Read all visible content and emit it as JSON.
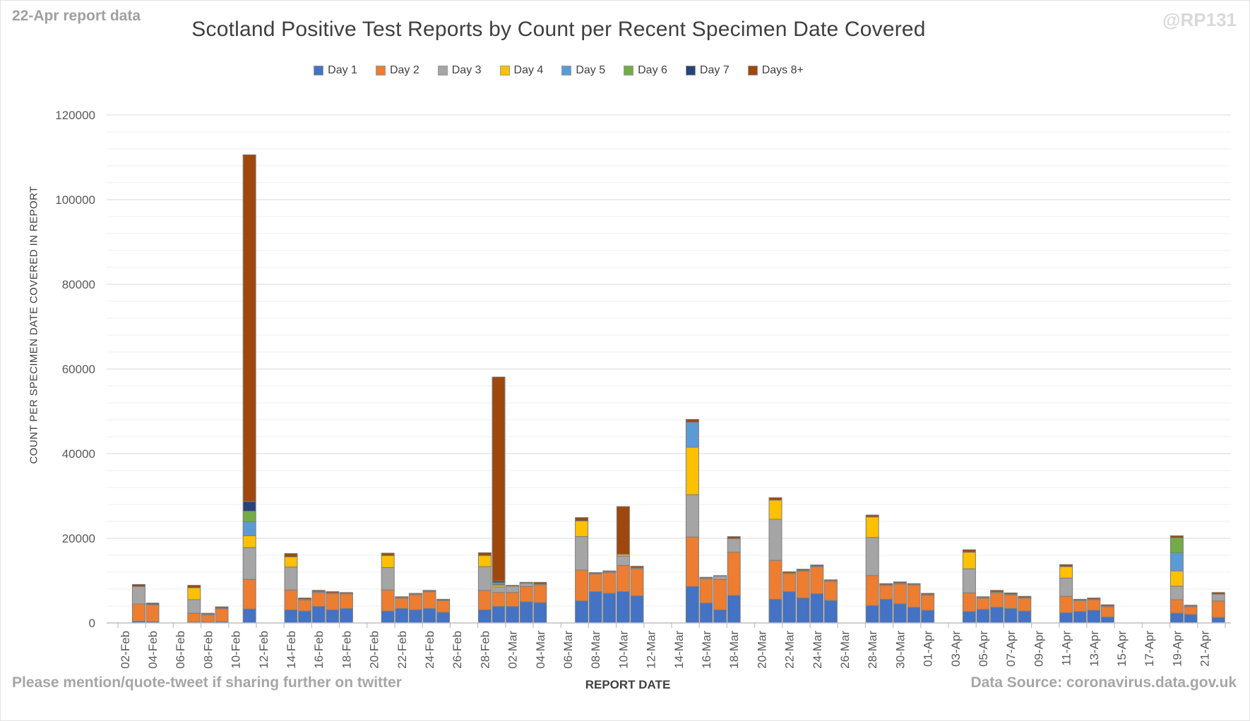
{
  "annotations": {
    "report_note": "22-Apr report data",
    "watermark": "@RP131",
    "footer_left": "Please mention/quote-tweet if sharing further on twitter",
    "footer_right": "Data Source: coronavirus.data.gov.uk"
  },
  "chart_data": {
    "type": "bar",
    "stacked": true,
    "title": "Scotland Positive Test Reports by Count per Recent Specimen Date Covered",
    "xlabel": "REPORT DATE",
    "ylabel": "COUNT PER SPECIMEN DATE COVERED IN REPORT",
    "ylim": [
      0,
      120000
    ],
    "y_tick_values": [
      0,
      20000,
      40000,
      60000,
      80000,
      100000,
      120000
    ],
    "y_minor_step": 4000,
    "grid": true,
    "legend_position": "top",
    "x_slots": 80,
    "x_tick_labels": [
      "02-Feb",
      "04-Feb",
      "06-Feb",
      "08-Feb",
      "10-Feb",
      "12-Feb",
      "14-Feb",
      "16-Feb",
      "18-Feb",
      "20-Feb",
      "22-Feb",
      "24-Feb",
      "26-Feb",
      "28-Feb",
      "02-Mar",
      "04-Mar",
      "06-Mar",
      "08-Mar",
      "10-Mar",
      "12-Mar",
      "14-Mar",
      "16-Mar",
      "18-Mar",
      "20-Mar",
      "22-Mar",
      "24-Mar",
      "26-Mar",
      "28-Mar",
      "30-Mar",
      "01-Apr",
      "03-Apr",
      "05-Apr",
      "07-Apr",
      "09-Apr",
      "11-Apr",
      "13-Apr",
      "15-Apr",
      "17-Apr",
      "19-Apr",
      "21-Apr"
    ],
    "series": [
      {
        "name": "Day 1",
        "color": "#4472C4"
      },
      {
        "name": "Day 2",
        "color": "#ED7D31"
      },
      {
        "name": "Day 3",
        "color": "#A5A5A5"
      },
      {
        "name": "Day 4",
        "color": "#FFC000"
      },
      {
        "name": "Day 5",
        "color": "#5B9BD5"
      },
      {
        "name": "Day 6",
        "color": "#70AD47"
      },
      {
        "name": "Day 7",
        "color": "#264478"
      },
      {
        "name": "Days 8+",
        "color": "#9E480E"
      }
    ],
    "bars": [
      {
        "date": "03-Feb",
        "slot": 1,
        "values": [
          400,
          4100,
          4100,
          0,
          0,
          0,
          0,
          500
        ]
      },
      {
        "date": "04-Feb",
        "slot": 2,
        "values": [
          300,
          4000,
          100,
          0,
          0,
          0,
          0,
          300
        ]
      },
      {
        "date": "07-Feb",
        "slot": 5,
        "values": [
          200,
          2100,
          3200,
          2800,
          0,
          0,
          0,
          600
        ]
      },
      {
        "date": "08-Feb",
        "slot": 6,
        "values": [
          200,
          1700,
          200,
          0,
          0,
          0,
          0,
          200
        ]
      },
      {
        "date": "09-Feb",
        "slot": 7,
        "values": [
          300,
          3100,
          100,
          0,
          0,
          0,
          0,
          300
        ]
      },
      {
        "date": "11-Feb",
        "slot": 9,
        "values": [
          3300,
          7000,
          7500,
          2800,
          3300,
          2500,
          2300,
          81900
        ]
      },
      {
        "date": "14-Feb",
        "slot": 12,
        "values": [
          3100,
          4700,
          5400,
          2400,
          0,
          0,
          0,
          800
        ]
      },
      {
        "date": "15-Feb",
        "slot": 13,
        "values": [
          2800,
          2600,
          200,
          0,
          0,
          0,
          0,
          300
        ]
      },
      {
        "date": "16-Feb",
        "slot": 14,
        "values": [
          3900,
          3300,
          200,
          0,
          0,
          0,
          0,
          300
        ]
      },
      {
        "date": "17-Feb",
        "slot": 15,
        "values": [
          3100,
          3800,
          200,
          0,
          0,
          0,
          0,
          300
        ]
      },
      {
        "date": "18-Feb",
        "slot": 16,
        "values": [
          3400,
          3500,
          100,
          0,
          0,
          0,
          0,
          200
        ]
      },
      {
        "date": "21-Feb",
        "slot": 19,
        "values": [
          2800,
          5000,
          5300,
          2800,
          0,
          0,
          0,
          600
        ]
      },
      {
        "date": "22-Feb",
        "slot": 20,
        "values": [
          3400,
          2500,
          100,
          0,
          0,
          0,
          0,
          200
        ]
      },
      {
        "date": "23-Feb",
        "slot": 21,
        "values": [
          3100,
          3600,
          100,
          0,
          0,
          0,
          0,
          200
        ]
      },
      {
        "date": "24-Feb",
        "slot": 22,
        "values": [
          3400,
          4000,
          100,
          0,
          0,
          0,
          0,
          200
        ]
      },
      {
        "date": "25-Feb",
        "slot": 23,
        "values": [
          2500,
          2800,
          100,
          0,
          0,
          0,
          0,
          200
        ]
      },
      {
        "date": "28-Feb",
        "slot": 26,
        "values": [
          3100,
          4600,
          5600,
          2600,
          0,
          0,
          0,
          700
        ]
      },
      {
        "date": "01-Mar",
        "slot": 27,
        "values": [
          3900,
          3300,
          1300,
          400,
          200,
          400,
          400,
          48200
        ]
      },
      {
        "date": "02-Mar",
        "slot": 28,
        "values": [
          3900,
          3300,
          1500,
          0,
          0,
          0,
          0,
          200
        ]
      },
      {
        "date": "03-Mar",
        "slot": 29,
        "values": [
          5000,
          3600,
          800,
          0,
          0,
          0,
          0,
          200
        ]
      },
      {
        "date": "04-Mar",
        "slot": 30,
        "values": [
          4800,
          4200,
          200,
          0,
          0,
          0,
          0,
          400
        ]
      },
      {
        "date": "07-Mar",
        "slot": 33,
        "values": [
          5200,
          7300,
          7900,
          3700,
          0,
          0,
          0,
          800
        ]
      },
      {
        "date": "08-Mar",
        "slot": 34,
        "values": [
          7400,
          4200,
          100,
          0,
          0,
          0,
          0,
          200
        ]
      },
      {
        "date": "09-Mar",
        "slot": 35,
        "values": [
          7000,
          4900,
          200,
          0,
          0,
          0,
          0,
          200
        ]
      },
      {
        "date": "10-Mar",
        "slot": 36,
        "values": [
          7400,
          6200,
          2200,
          400,
          0,
          0,
          0,
          11300
        ]
      },
      {
        "date": "11-Mar",
        "slot": 37,
        "values": [
          6400,
          6400,
          200,
          0,
          0,
          0,
          0,
          400
        ]
      },
      {
        "date": "15-Mar",
        "slot": 41,
        "values": [
          8600,
          11700,
          10000,
          11200,
          5900,
          0,
          0,
          700
        ]
      },
      {
        "date": "16-Mar",
        "slot": 42,
        "values": [
          4700,
          5800,
          100,
          0,
          0,
          0,
          0,
          200
        ]
      },
      {
        "date": "17-Mar",
        "slot": 43,
        "values": [
          3100,
          7200,
          800,
          0,
          0,
          0,
          0,
          100
        ]
      },
      {
        "date": "18-Mar",
        "slot": 44,
        "values": [
          6500,
          10200,
          3200,
          0,
          0,
          0,
          0,
          500
        ]
      },
      {
        "date": "21-Mar",
        "slot": 47,
        "values": [
          5600,
          9200,
          9700,
          4500,
          0,
          0,
          0,
          600
        ]
      },
      {
        "date": "22-Mar",
        "slot": 48,
        "values": [
          7400,
          4300,
          100,
          0,
          0,
          0,
          0,
          300
        ]
      },
      {
        "date": "23-Mar",
        "slot": 49,
        "values": [
          5900,
          6400,
          100,
          0,
          0,
          0,
          0,
          300
        ]
      },
      {
        "date": "24-Mar",
        "slot": 50,
        "values": [
          6900,
          6400,
          100,
          0,
          0,
          0,
          0,
          300
        ]
      },
      {
        "date": "25-Mar",
        "slot": 51,
        "values": [
          5300,
          4600,
          100,
          0,
          0,
          0,
          0,
          200
        ]
      },
      {
        "date": "28-Mar",
        "slot": 54,
        "values": [
          4100,
          7100,
          9000,
          4800,
          0,
          0,
          0,
          500
        ]
      },
      {
        "date": "29-Mar",
        "slot": 55,
        "values": [
          5600,
          3300,
          100,
          0,
          0,
          0,
          0,
          300
        ]
      },
      {
        "date": "30-Mar",
        "slot": 56,
        "values": [
          4500,
          4700,
          200,
          0,
          0,
          0,
          0,
          300
        ]
      },
      {
        "date": "31-Mar",
        "slot": 57,
        "values": [
          3700,
          5300,
          100,
          0,
          0,
          0,
          0,
          200
        ]
      },
      {
        "date": "01-Apr",
        "slot": 58,
        "values": [
          3000,
          3600,
          100,
          0,
          0,
          0,
          0,
          300
        ]
      },
      {
        "date": "04-Apr",
        "slot": 61,
        "values": [
          2700,
          4400,
          5700,
          3900,
          0,
          0,
          0,
          600
        ]
      },
      {
        "date": "05-Apr",
        "slot": 62,
        "values": [
          3200,
          2700,
          100,
          0,
          0,
          0,
          0,
          200
        ]
      },
      {
        "date": "06-Apr",
        "slot": 63,
        "values": [
          3700,
          3500,
          100,
          0,
          0,
          0,
          0,
          400
        ]
      },
      {
        "date": "07-Apr",
        "slot": 64,
        "values": [
          3400,
          3300,
          100,
          0,
          0,
          0,
          0,
          300
        ]
      },
      {
        "date": "08-Apr",
        "slot": 65,
        "values": [
          2800,
          3100,
          100,
          0,
          0,
          0,
          0,
          300
        ]
      },
      {
        "date": "11-Apr",
        "slot": 68,
        "values": [
          2400,
          3900,
          4300,
          2700,
          0,
          0,
          0,
          500
        ]
      },
      {
        "date": "12-Apr",
        "slot": 69,
        "values": [
          2700,
          2600,
          100,
          0,
          0,
          0,
          0,
          200
        ]
      },
      {
        "date": "13-Apr",
        "slot": 70,
        "values": [
          3000,
          2500,
          100,
          0,
          0,
          0,
          0,
          300
        ]
      },
      {
        "date": "14-Apr",
        "slot": 71,
        "values": [
          1400,
          2500,
          100,
          0,
          0,
          0,
          0,
          300
        ]
      },
      {
        "date": "19-Apr",
        "slot": 76,
        "values": [
          2300,
          3200,
          3200,
          3600,
          4300,
          3500,
          0,
          500
        ]
      },
      {
        "date": "20-Apr",
        "slot": 77,
        "values": [
          2000,
          1900,
          100,
          0,
          0,
          0,
          0,
          200
        ]
      },
      {
        "date": "22-Apr",
        "slot": 79,
        "values": [
          1300,
          3900,
          1600,
          0,
          0,
          0,
          0,
          400
        ]
      }
    ],
    "style": {
      "bar_border_color": "#7e7e7e",
      "major_grid_color": "#d9d9d9",
      "minor_grid_color": "#efefef",
      "axis_color": "#bfbfbf",
      "tick_label_color": "#595959"
    }
  }
}
